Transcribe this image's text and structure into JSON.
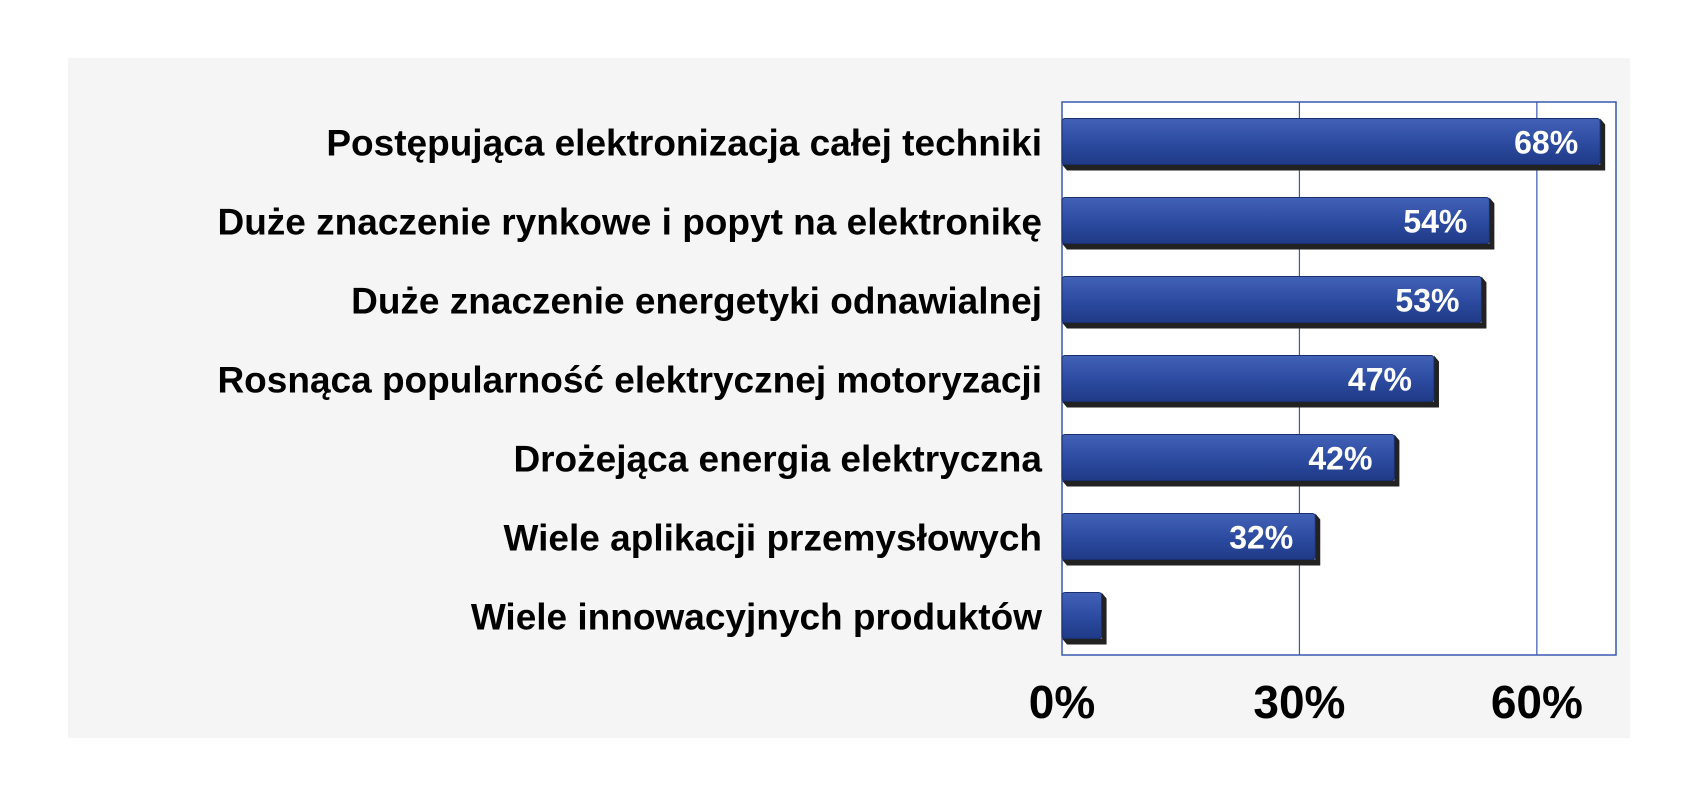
{
  "chart_data": {
    "type": "bar",
    "orientation": "horizontal",
    "categories": [
      "Postępująca elektronizacja całej techniki",
      "Duże znaczenie rynkowe i popyt na elektronikę",
      "Duże znaczenie energetyki odnawialnej",
      "Rosnąca popularność elektrycznej motoryzacji",
      "Drożejąca energia elektryczna",
      "Wiele aplikacji przemysłowych",
      "Wiele innowacyjnych produktów"
    ],
    "values": [
      68,
      54,
      53,
      47,
      42,
      32,
      5
    ],
    "data_labels": [
      "68%",
      "54%",
      "53%",
      "47%",
      "42%",
      "32%",
      ""
    ],
    "x_ticks": [
      0,
      30,
      60
    ],
    "x_tick_labels": [
      "0%",
      "30%",
      "60%"
    ],
    "xlim": [
      0,
      70
    ],
    "grid": true,
    "bar_color": "#2b4aa0",
    "bar_shadow_color": "#222222",
    "plot_background": "#ffffff",
    "page_background": "#f5f5f5",
    "frame_color": "#3a58b0"
  }
}
